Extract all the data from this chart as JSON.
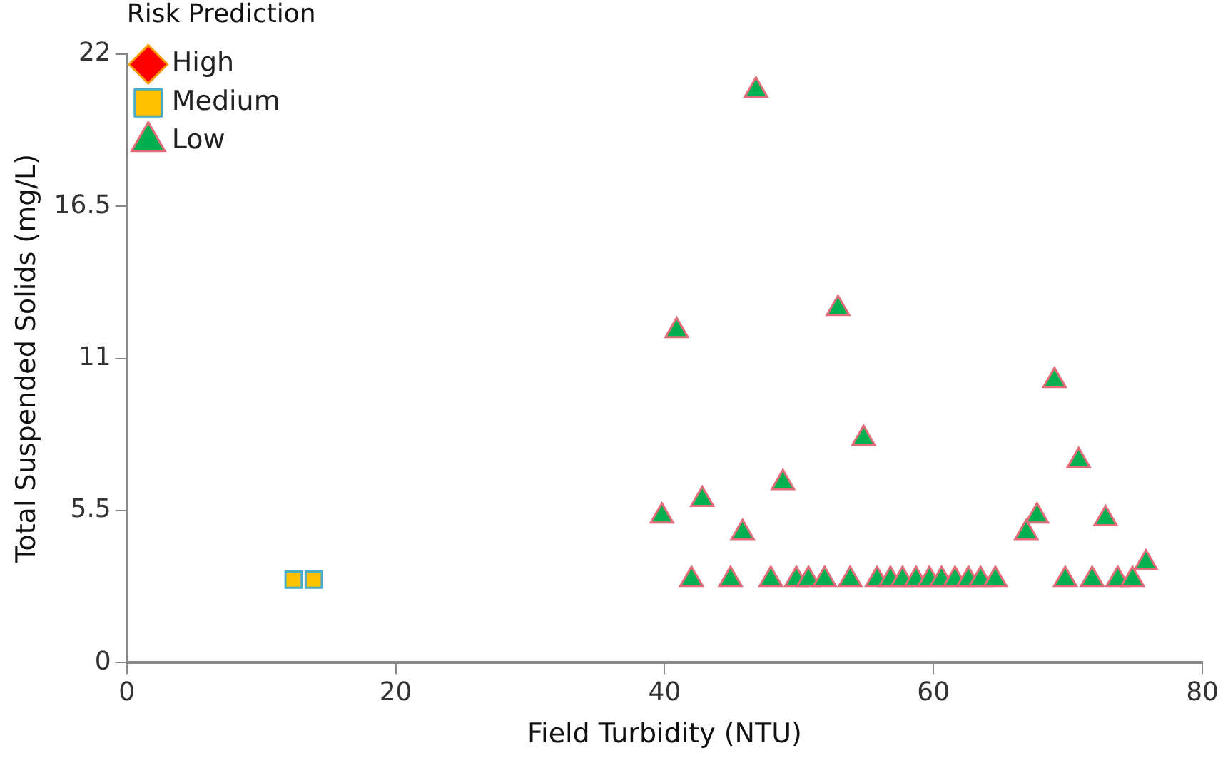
{
  "chart_data": {
    "type": "scatter",
    "xlabel": "Field Turbidity (NTU)",
    "ylabel": "Total Suspended Solids (mg/L)",
    "legend_title": "Risk Prediction",
    "legend": "top left",
    "grid": false,
    "xlim": [
      0,
      80
    ],
    "xticks": [
      0,
      20,
      40,
      60,
      80
    ],
    "ylim": [
      0,
      22
    ],
    "yticks": [
      0,
      5.5,
      11,
      16.5,
      22
    ],
    "series": [
      {
        "name": "High",
        "color": "#ff0000",
        "marker": "diamond"
      },
      {
        "name": "Medium",
        "color": "#ffc000",
        "marker": "square",
        "x": [
          12.4,
          13.9
        ],
        "values": [
          3,
          3
        ]
      },
      {
        "name": "Low",
        "color": "#00b050",
        "marker": "triangle",
        "x": [
          46.8,
          40.9,
          52.9,
          69.0,
          54.8,
          70.8,
          48.8,
          42.8,
          39.8,
          45.8,
          67.7,
          72.8,
          66.9,
          75.8,
          42.0,
          44.9,
          47.9,
          49.8,
          50.7,
          51.9,
          53.8,
          55.8,
          56.8,
          57.7,
          58.7,
          59.7,
          60.6,
          61.6,
          62.6,
          63.5,
          64.6,
          69.8,
          71.8,
          73.7,
          74.8
        ],
        "values": [
          20.7,
          12.0,
          12.8,
          10.2,
          8.1,
          7.3,
          6.5,
          5.9,
          5.3,
          4.7,
          5.3,
          5.2,
          4.7,
          3.6,
          3,
          3,
          3,
          3,
          3,
          3,
          3,
          3,
          3,
          3,
          3,
          3,
          3,
          3,
          3,
          3,
          3,
          3,
          3,
          3,
          3
        ]
      }
    ]
  }
}
